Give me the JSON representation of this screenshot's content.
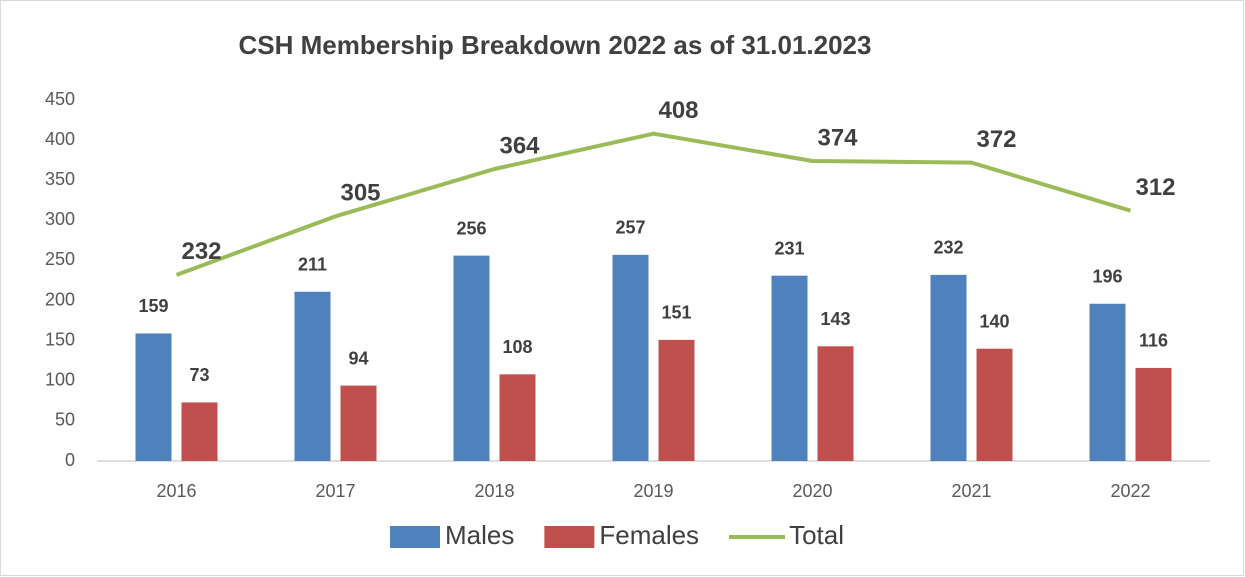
{
  "chart_data": {
    "type": "bar",
    "title": "CSH Membership Breakdown 2022 as of 31.01.2023",
    "categories": [
      "2016",
      "2017",
      "2018",
      "2019",
      "2020",
      "2021",
      "2022"
    ],
    "series": [
      {
        "name": "Males",
        "type": "bar",
        "color": "#4f81bd",
        "values": [
          159,
          211,
          256,
          257,
          231,
          232,
          196
        ]
      },
      {
        "name": "Females",
        "type": "bar",
        "color": "#c0504d",
        "values": [
          73,
          94,
          108,
          151,
          143,
          140,
          116
        ]
      },
      {
        "name": "Total",
        "type": "line",
        "color": "#9bbb59",
        "values": [
          232,
          305,
          364,
          408,
          374,
          372,
          312
        ]
      }
    ],
    "ylim": [
      0,
      450
    ],
    "yticks": [
      0,
      50,
      100,
      150,
      200,
      250,
      300,
      350,
      400,
      450
    ],
    "grid": false,
    "legend": "bottom"
  }
}
